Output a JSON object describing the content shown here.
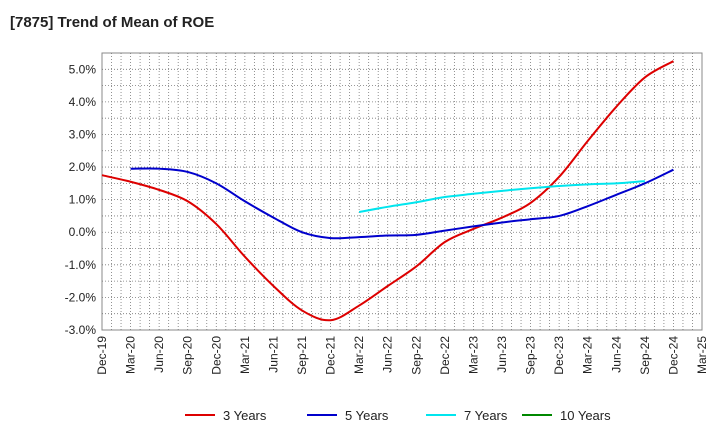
{
  "chart_data": {
    "type": "line",
    "title": "[7875]  Trend of Mean of ROE",
    "xlabel": "",
    "ylabel": "",
    "x_ticks": [
      "Dec-19",
      "Mar-20",
      "Jun-20",
      "Sep-20",
      "Dec-20",
      "Mar-21",
      "Jun-21",
      "Sep-21",
      "Dec-21",
      "Mar-22",
      "Jun-22",
      "Sep-22",
      "Dec-22",
      "Mar-23",
      "Jun-23",
      "Sep-23",
      "Dec-23",
      "Mar-24",
      "Jun-24",
      "Sep-24",
      "Dec-24",
      "Mar-25"
    ],
    "y_ticks": [
      "5.0%",
      "4.0%",
      "3.0%",
      "2.0%",
      "1.0%",
      "0.0%",
      "-1.0%",
      "-2.0%",
      "-3.0%"
    ],
    "ylim": [
      -3.0,
      5.5
    ],
    "grid": true,
    "legend_position": "bottom",
    "series": [
      {
        "name": "3 Years",
        "color": "#dd0000",
        "start": "Dec-19",
        "values": [
          1.75,
          1.55,
          1.3,
          0.95,
          0.25,
          -0.75,
          -1.65,
          -2.4,
          -2.7,
          -2.25,
          -1.65,
          -1.05,
          -0.3,
          0.1,
          0.45,
          0.9,
          1.7,
          2.8,
          3.85,
          4.75,
          5.25
        ]
      },
      {
        "name": "5 Years",
        "color": "#0000cc",
        "start": "Mar-20",
        "values": [
          1.95,
          1.95,
          1.85,
          1.5,
          0.95,
          0.45,
          0.0,
          -0.18,
          -0.15,
          -0.1,
          -0.08,
          0.05,
          0.18,
          0.3,
          0.4,
          0.5,
          0.8,
          1.15,
          1.5,
          1.92
        ]
      },
      {
        "name": "7 Years",
        "color": "#00e5ee",
        "start": "Mar-22",
        "values": [
          0.62,
          0.78,
          0.92,
          1.08,
          1.18,
          1.27,
          1.35,
          1.42,
          1.47,
          1.5,
          1.57
        ]
      },
      {
        "name": "10 Years",
        "color": "#008800",
        "start": "Dec-24",
        "values": []
      }
    ]
  }
}
